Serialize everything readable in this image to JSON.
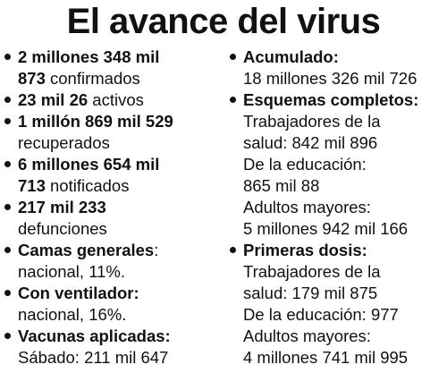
{
  "title": "El avance del virus",
  "left": {
    "confirmados": {
      "bold1": "2 millones 348 mil",
      "bold2": "873",
      "rest": " confirmados"
    },
    "activos": {
      "bold": "23 mil 26",
      "rest": " activos"
    },
    "recuperados": {
      "bold": "1 millón 869 mil 529",
      "rest": "recuperados"
    },
    "notificados": {
      "bold1": "6 millones 654 mil",
      "bold2": "713",
      "rest": " notificados"
    },
    "defunciones": {
      "bold": "217 mil 233",
      "rest": "defunciones"
    },
    "camas": {
      "bold": "Camas generales",
      "colon": ":",
      "rest": "nacional, 11%."
    },
    "ventilador": {
      "bold": "Con ventilador:",
      "rest": "nacional, 16%."
    },
    "vacunas": {
      "bold": "Vacunas aplicadas:",
      "rest": "Sábado: 211 mil 647"
    }
  },
  "right": {
    "acumulado": {
      "bold": "Acumulado:",
      "rest": "18 millones 326 mil 726"
    },
    "esquemas": {
      "bold": "Esquemas completos:",
      "lines": [
        "Trabajadores de la",
        "salud: 842 mil 896",
        "De la educación:",
        "865 mil 88",
        "Adultos mayores:",
        "5 millones 942 mil 166"
      ]
    },
    "primeras": {
      "bold": "Primeras dosis:",
      "lines": [
        "Trabajadores de la",
        "salud: 179 mil 875",
        "De la educación: 977",
        "Adultos mayores:",
        "4 millones 741 mil 995"
      ]
    }
  }
}
